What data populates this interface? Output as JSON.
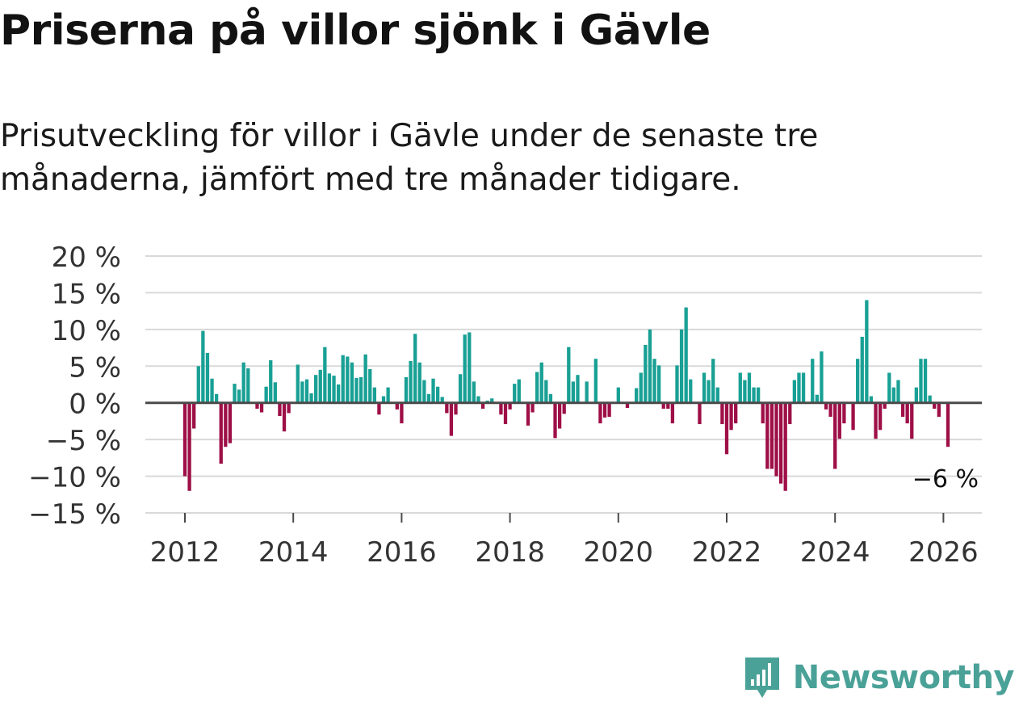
{
  "chart_data": {
    "type": "bar",
    "title": "Priserna på villor sjönk i Gävle",
    "subtitle": "Prisutveckling för villor i Gävle under de senaste tre månaderna, jämfört med tre månader tidigare.",
    "xlabel": "",
    "ylabel": "",
    "ylim": [
      -15,
      20
    ],
    "y_ticks": [
      20,
      15,
      10,
      5,
      0,
      -5,
      -10,
      -15
    ],
    "y_tick_labels": [
      "20 %",
      "15 %",
      "10 %",
      "5 %",
      "0 %",
      "−5 %",
      "−10 %",
      "−15 %"
    ],
    "x_ticks": [
      2012,
      2014,
      2016,
      2018,
      2020,
      2022,
      2024,
      2026
    ],
    "x_tick_labels": [
      "2012",
      "2014",
      "2016",
      "2018",
      "2020",
      "2022",
      "2024",
      "2026"
    ],
    "grid": true,
    "start": "2012-01",
    "frequency": "monthly",
    "values": [
      -10,
      -12,
      -3.5,
      5,
      9.8,
      6.8,
      3.3,
      1.2,
      -8.3,
      -6,
      -5.5,
      2.6,
      1.8,
      5.5,
      4.7,
      0,
      -0.8,
      -1.3,
      2.2,
      5.8,
      2.8,
      -1.8,
      -3.9,
      -1.4,
      0,
      5.2,
      2.9,
      3.2,
      1.3,
      3.8,
      4.5,
      7.6,
      4.0,
      3.7,
      2.5,
      6.5,
      6.3,
      5.5,
      3.4,
      3.5,
      6.6,
      4.6,
      2.1,
      -1.6,
      0.9,
      2.1,
      0.1,
      -0.9,
      -2.8,
      3.5,
      5.7,
      9.4,
      5.5,
      3.1,
      1.2,
      3.3,
      2.2,
      0.8,
      -1.4,
      -4.5,
      -1.6,
      3.9,
      9.3,
      9.6,
      2.9,
      0.9,
      -0.8,
      0.3,
      0.6,
      0,
      -1.6,
      -2.9,
      -0.9,
      2.6,
      3.2,
      0,
      -3.1,
      -1.3,
      4.2,
      5.5,
      3.1,
      1.2,
      -4.8,
      -3.5,
      -1.5,
      7.6,
      2.9,
      3.8,
      0,
      2.9,
      0.1,
      6.0,
      -2.8,
      -2.0,
      -1.9,
      0,
      2.1,
      0,
      -0.7,
      0,
      2.0,
      4.1,
      7.9,
      10.0,
      6.0,
      5.1,
      -0.8,
      -0.8,
      -2.8,
      5.1,
      10.0,
      13.0,
      3.2,
      0,
      -2.9,
      4.1,
      3.1,
      6.0,
      2.1,
      -2.9,
      -7.0,
      -3.7,
      -2.8,
      4.1,
      3.1,
      4.1,
      2.1,
      2.1,
      -2.8,
      -9.0,
      -9.0,
      -10.0,
      -11.0,
      -12.0,
      -2.9,
      3.1,
      4.1,
      4.1,
      0,
      6.0,
      1.1,
      7.0,
      -0.9,
      -1.9,
      -9.0,
      -4.9,
      -2.8,
      0,
      -3.7,
      6.0,
      9.0,
      14.0,
      0.9,
      -4.9,
      -3.7,
      -0.8,
      4.1,
      2.1,
      3.1,
      -1.9,
      -2.8,
      -4.9,
      2.1,
      6.0,
      6.0,
      1.0,
      -0.8,
      -1.9,
      0,
      -6.0
    ],
    "last_label": "−6 %",
    "colors": {
      "positive": "#19a095",
      "negative": "#9e0f47",
      "grid": "#d9d9d9",
      "zero": "#4a4a4a",
      "text": "#333333"
    }
  },
  "brand": {
    "name": "Newsworthy",
    "color": "#4aa197"
  }
}
